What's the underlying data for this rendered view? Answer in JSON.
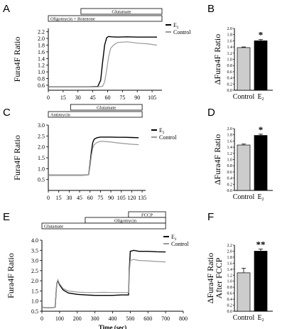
{
  "panels": {
    "A": {
      "label": "A"
    },
    "B": {
      "label": "B"
    },
    "C": {
      "label": "C"
    },
    "D": {
      "label": "D"
    },
    "E": {
      "label": "E"
    },
    "F": {
      "label": "F"
    }
  },
  "chart_data": [
    {
      "id": "A",
      "type": "line",
      "ylabel": "Fura4F Ratio",
      "xlabel": "",
      "xticks": [
        0,
        15,
        30,
        45,
        60,
        75,
        90,
        105
      ],
      "xlim": [
        0,
        115
      ],
      "yticks": [
        "0.6",
        "0.8",
        "1.0",
        "1.2",
        "1.4",
        "1.6",
        "1.8",
        "2.0",
        "2.2"
      ],
      "ylim": [
        0.45,
        2.3
      ],
      "treatments": [
        {
          "label": "Glutamate",
          "start": 33,
          "end": 115,
          "row": 0
        },
        {
          "label": "Oligomycin + Rotenone",
          "start": 0,
          "end": 115,
          "row": 1
        }
      ],
      "legend": [
        "E",
        "Control"
      ],
      "series": [
        {
          "name": "E2",
          "color": "#000000",
          "x": [
            0,
            10,
            20,
            30,
            40,
            50,
            53,
            55,
            57,
            59,
            61,
            64,
            70,
            80,
            90,
            100,
            110
          ],
          "y": [
            0.55,
            0.55,
            0.55,
            0.55,
            0.55,
            0.56,
            0.75,
            1.3,
            1.8,
            2.02,
            2.06,
            2.05,
            2.04,
            2.05,
            2.04,
            2.04,
            2.04
          ]
        },
        {
          "name": "Control",
          "color": "#999999",
          "x": [
            0,
            10,
            20,
            30,
            40,
            50,
            55,
            57,
            59,
            61,
            63,
            66,
            70,
            80,
            90,
            100,
            110
          ],
          "y": [
            0.55,
            0.55,
            0.55,
            0.55,
            0.55,
            0.55,
            0.57,
            0.7,
            1.05,
            1.45,
            1.7,
            1.8,
            1.88,
            1.9,
            1.86,
            1.84,
            1.8
          ]
        }
      ]
    },
    {
      "id": "B",
      "type": "bar",
      "ylabel": "ΔFura4F Ratio",
      "categories": [
        "Control",
        "E"
      ],
      "values": [
        1.38,
        1.6
      ],
      "errors": [
        0.02,
        0.04
      ],
      "colors": [
        "#cccccc",
        "#000000"
      ],
      "yticks": [
        "0.0",
        "0.2",
        "0.4",
        "0.6",
        "0.8",
        "1.0",
        "1.2",
        "1.4",
        "1.6",
        "1.8",
        "2.0"
      ],
      "ylim": [
        0,
        2.0
      ],
      "annotation": "*",
      "annotation_bar": 1
    },
    {
      "id": "C",
      "type": "line",
      "ylabel": "Fura4F Ratio",
      "xlabel": "",
      "xticks": [
        0,
        15,
        30,
        45,
        60,
        75,
        90,
        105,
        120,
        135
      ],
      "xlim": [
        0,
        140
      ],
      "yticks": [
        "0.5",
        "1.0",
        "1.5",
        "2.0",
        "2.5",
        "3.0"
      ],
      "ylim": [
        0,
        3.0
      ],
      "treatments": [
        {
          "label": "Glutamate",
          "start": 32,
          "end": 135,
          "row": 0
        },
        {
          "label": "Antimycin",
          "start": 0,
          "end": 135,
          "row": 1
        }
      ],
      "legend": [
        "E",
        "Control"
      ],
      "series": [
        {
          "name": "E2",
          "color": "#000000",
          "x": [
            0,
            10,
            20,
            30,
            40,
            50,
            58,
            60,
            62,
            64,
            66,
            70,
            75,
            80,
            90,
            100,
            110,
            120,
            130
          ],
          "y": [
            0.7,
            0.7,
            0.7,
            0.7,
            0.7,
            0.7,
            0.72,
            1.2,
            1.8,
            2.2,
            2.35,
            2.42,
            2.45,
            2.45,
            2.45,
            2.44,
            2.44,
            2.43,
            2.42
          ]
        },
        {
          "name": "Control",
          "color": "#999999",
          "x": [
            0,
            10,
            20,
            30,
            40,
            50,
            58,
            60,
            62,
            64,
            66,
            70,
            75,
            80,
            90,
            100,
            110,
            120,
            130
          ],
          "y": [
            0.7,
            0.7,
            0.7,
            0.7,
            0.7,
            0.7,
            0.72,
            1.1,
            1.6,
            1.95,
            2.1,
            2.2,
            2.25,
            2.25,
            2.22,
            2.18,
            2.15,
            2.12,
            2.1
          ]
        }
      ]
    },
    {
      "id": "D",
      "type": "bar",
      "ylabel": "ΔFura4F Ratio",
      "categories": [
        "Control",
        "E"
      ],
      "values": [
        1.47,
        1.78
      ],
      "errors": [
        0.03,
        0.04
      ],
      "colors": [
        "#cccccc",
        "#000000"
      ],
      "yticks": [
        "0.0",
        "0.2",
        "0.4",
        "0.6",
        "0.8",
        "1.0",
        "1.2",
        "1.4",
        "1.6",
        "1.8",
        "2.0"
      ],
      "ylim": [
        0,
        2.0
      ],
      "annotation": "*",
      "annotation_bar": 1
    },
    {
      "id": "E",
      "type": "line",
      "ylabel": "Fura4F Ratio",
      "xlabel": "Time (sec)",
      "xticks": [
        0,
        100,
        200,
        300,
        400,
        500,
        600,
        700,
        800
      ],
      "xlim": [
        0,
        800
      ],
      "yticks": [
        "0.5",
        "1.0",
        "1.5",
        "2.0",
        "2.5",
        "3.0",
        "3.5",
        "4.0"
      ],
      "ylim": [
        0.5,
        4.0
      ],
      "treatments": [
        {
          "label": "FCCP",
          "start": 490,
          "end": 700,
          "row": 0
        },
        {
          "label": "Oligomycin",
          "start": 245,
          "end": 700,
          "row": 1
        },
        {
          "label": "Glutamate",
          "start": 0,
          "end": 700,
          "row": 2
        }
      ],
      "legend": [
        "E",
        "Control"
      ],
      "series": [
        {
          "name": "E2",
          "color": "#000000",
          "x": [
            0,
            20,
            40,
            60,
            75,
            80,
            85,
            90,
            100,
            120,
            150,
            200,
            250,
            300,
            350,
            400,
            450,
            490,
            495,
            500,
            520,
            550,
            600,
            650,
            700
          ],
          "y": [
            0.7,
            0.68,
            0.67,
            0.68,
            0.7,
            1.4,
            1.9,
            2.0,
            1.8,
            1.55,
            1.4,
            1.33,
            1.3,
            1.28,
            1.28,
            1.28,
            1.3,
            1.3,
            2.6,
            3.45,
            3.5,
            3.45,
            3.45,
            3.43,
            3.42
          ]
        },
        {
          "name": "Control",
          "color": "#999999",
          "x": [
            0,
            20,
            40,
            60,
            75,
            80,
            85,
            90,
            100,
            120,
            150,
            200,
            250,
            300,
            350,
            400,
            450,
            490,
            495,
            500,
            520,
            550,
            600,
            650,
            700
          ],
          "y": [
            0.7,
            0.68,
            0.67,
            0.68,
            0.7,
            1.4,
            1.9,
            2.05,
            1.85,
            1.62,
            1.5,
            1.44,
            1.42,
            1.42,
            1.43,
            1.42,
            1.42,
            1.42,
            2.4,
            3.0,
            3.05,
            3.0,
            2.98,
            2.95,
            2.93
          ]
        }
      ]
    },
    {
      "id": "F",
      "type": "bar",
      "ylabel": "ΔFura4F Ratio",
      "ylabel2": "After FCCP",
      "categories": [
        "Control",
        "E"
      ],
      "values": [
        1.28,
        2.0
      ],
      "errors": [
        0.15,
        0.07
      ],
      "colors": [
        "#cccccc",
        "#000000"
      ],
      "yticks": [
        "0.0",
        "0.2",
        "0.4",
        "0.6",
        "0.8",
        "1.0",
        "1.2",
        "1.4",
        "1.6",
        "1.8",
        "2.0",
        "2.2"
      ],
      "ylim": [
        0,
        2.2
      ],
      "annotation": "**",
      "annotation_bar": 1
    }
  ]
}
